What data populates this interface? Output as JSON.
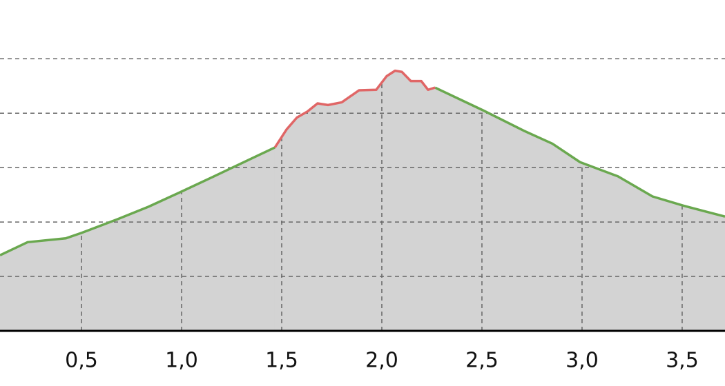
{
  "chart_data": {
    "type": "area",
    "x": [
      0.093,
      0.231,
      0.421,
      0.5,
      0.679,
      0.834,
      1.0,
      1.162,
      1.334,
      1.466,
      1.524,
      1.576,
      1.628,
      1.679,
      1.731,
      1.8,
      1.886,
      1.972,
      2.024,
      2.066,
      2.1,
      2.145,
      2.197,
      2.231,
      2.266,
      2.507,
      2.714,
      2.852,
      2.99,
      3.179,
      3.352,
      3.507,
      3.714
    ],
    "series": [
      {
        "color": "#6aa84f",
        "values": [
          1.39,
          1.63,
          1.7,
          1.8,
          2.05,
          2.28,
          2.56,
          2.84,
          3.14,
          3.37,
          null,
          null,
          null,
          null,
          null,
          null,
          null,
          null,
          null,
          null,
          null,
          null,
          null,
          null,
          4.47,
          4.05,
          3.67,
          3.44,
          3.1,
          2.84,
          2.47,
          2.3,
          2.1
        ]
      },
      {
        "color": "#e06666",
        "values": [
          null,
          null,
          null,
          null,
          null,
          null,
          null,
          null,
          null,
          3.37,
          3.7,
          3.92,
          4.03,
          4.18,
          4.15,
          4.2,
          4.42,
          4.43,
          4.68,
          4.78,
          4.76,
          4.59,
          4.59,
          4.43,
          4.47,
          null,
          null,
          null,
          null,
          null,
          null,
          null,
          null
        ]
      }
    ],
    "area_color": "#d3d3d3",
    "xlim": [
      0.093,
      3.714
    ],
    "ylim": [
      0,
      6.08
    ],
    "xticks": [
      {
        "value": 0.5,
        "label": "0,5"
      },
      {
        "value": 1.0,
        "label": "1,0"
      },
      {
        "value": 1.5,
        "label": "1,5"
      },
      {
        "value": 2.0,
        "label": "2,0"
      },
      {
        "value": 2.5,
        "label": "2,5"
      },
      {
        "value": 3.0,
        "label": "3,0"
      },
      {
        "value": 3.5,
        "label": "3,5"
      }
    ],
    "yticks": [
      1,
      2,
      3,
      4,
      5
    ],
    "grid": true
  }
}
